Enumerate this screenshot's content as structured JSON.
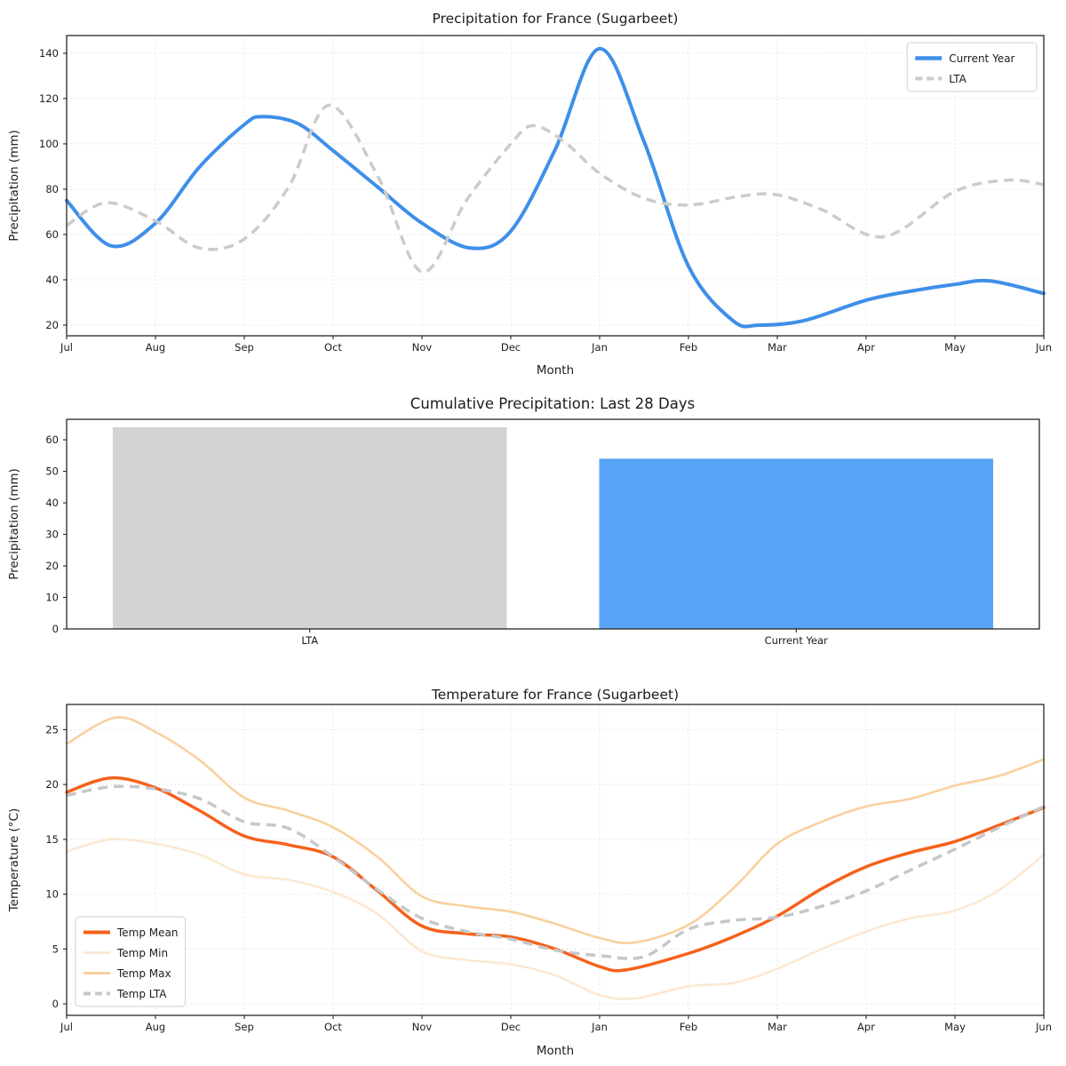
{
  "chart_data": [
    {
      "id": "precip_line",
      "type": "line",
      "title": "Precipitation for France (Sugarbeet)",
      "xlabel": "Month",
      "ylabel": "Precipitation (mm)",
      "x_ticks": [
        "Jul",
        "Aug",
        "Sep",
        "Oct",
        "Nov",
        "Dec",
        "Jan",
        "Feb",
        "Mar",
        "Apr",
        "May",
        "Jun"
      ],
      "xlim": [
        0,
        11
      ],
      "ylim": [
        15.3,
        147.8
      ],
      "yticks": [
        20,
        40,
        60,
        80,
        100,
        120,
        140
      ],
      "grid": true,
      "legend": {
        "anchor": "top-right"
      },
      "series": [
        {
          "name": "Current Year",
          "color": "#3e8fe9",
          "style": "solid",
          "width": 4,
          "points": [
            [
              0,
              75
            ],
            [
              0.5,
              55
            ],
            [
              1,
              65
            ],
            [
              1.5,
              90
            ],
            [
              2,
              108.5
            ],
            [
              2.2,
              112
            ],
            [
              2.6,
              109
            ],
            [
              3,
              97
            ],
            [
              3.5,
              81
            ],
            [
              4,
              65
            ],
            [
              4.55,
              54
            ],
            [
              5,
              61.5
            ],
            [
              5.5,
              97.5
            ],
            [
              6,
              142
            ],
            [
              6.5,
              101
            ],
            [
              7,
              46
            ],
            [
              7.5,
              22
            ],
            [
              7.8,
              20
            ],
            [
              8.3,
              22
            ],
            [
              9,
              31
            ],
            [
              9.5,
              35
            ],
            [
              10,
              38
            ],
            [
              10.4,
              39.5
            ],
            [
              11,
              34
            ]
          ]
        },
        {
          "name": "LTA",
          "color": "#cbcbcb",
          "style": "dashed",
          "width": 3.5,
          "points": [
            [
              0,
              64
            ],
            [
              0.45,
              74
            ],
            [
              1,
              66
            ],
            [
              1.5,
              54
            ],
            [
              2,
              58
            ],
            [
              2.5,
              81
            ],
            [
              2.95,
              117
            ],
            [
              3.5,
              86
            ],
            [
              4,
              43.5
            ],
            [
              4.5,
              75
            ],
            [
              5,
              100
            ],
            [
              5.25,
              108
            ],
            [
              5.6,
              101
            ],
            [
              6,
              87
            ],
            [
              6.5,
              76
            ],
            [
              7,
              73
            ],
            [
              7.6,
              77
            ],
            [
              8,
              77.5
            ],
            [
              8.5,
              71
            ],
            [
              9.2,
              59
            ],
            [
              10,
              79
            ],
            [
              10.6,
              84
            ],
            [
              11,
              82
            ]
          ]
        }
      ]
    },
    {
      "id": "precip_bar",
      "type": "bar",
      "title": "Cumulative Precipitation: Last 28 Days",
      "ylabel": "Precipitation (mm)",
      "categories": [
        "LTA",
        "Current Year"
      ],
      "values": [
        64,
        54
      ],
      "bar_colors": [
        "#d3d3d3",
        "#57a3f5"
      ],
      "ylim": [
        0,
        66.5
      ],
      "yticks": [
        0,
        10,
        20,
        30,
        40,
        50,
        60
      ],
      "grid": false
    },
    {
      "id": "temp_line",
      "type": "line",
      "title": "Temperature for France (Sugarbeet)",
      "xlabel": "Month",
      "ylabel": "Temperature (°C)",
      "x_ticks": [
        "Jul",
        "Aug",
        "Sep",
        "Oct",
        "Nov",
        "Dec",
        "Jan",
        "Feb",
        "Mar",
        "Apr",
        "May",
        "Jun"
      ],
      "xlim": [
        0,
        11
      ],
      "ylim": [
        -1.05,
        27.3
      ],
      "yticks": [
        0,
        5,
        10,
        15,
        20,
        25
      ],
      "grid": true,
      "legend": {
        "anchor": "bottom-left"
      },
      "series": [
        {
          "name": "Temp Mean",
          "color": "#f5611b",
          "style": "solid",
          "width": 3.5,
          "points": [
            [
              0,
              19.3
            ],
            [
              0.5,
              20.6
            ],
            [
              1,
              19.7
            ],
            [
              1.5,
              17.6
            ],
            [
              2,
              15.3
            ],
            [
              2.5,
              14.5
            ],
            [
              3,
              13.4
            ],
            [
              3.5,
              10.3
            ],
            [
              4,
              7.1
            ],
            [
              4.5,
              6.4
            ],
            [
              5,
              6.1
            ],
            [
              5.5,
              5.0
            ],
            [
              6,
              3.4
            ],
            [
              6.3,
              3.1
            ],
            [
              7,
              4.6
            ],
            [
              7.5,
              6.1
            ],
            [
              8,
              8.0
            ],
            [
              8.5,
              10.5
            ],
            [
              9,
              12.5
            ],
            [
              9.5,
              13.8
            ],
            [
              10,
              14.8
            ],
            [
              10.5,
              16.3
            ],
            [
              11,
              17.9
            ]
          ]
        },
        {
          "name": "Temp Min",
          "color": "#fce8d3",
          "style": "solid",
          "width": 2.6,
          "points": [
            [
              0,
              13.9
            ],
            [
              0.5,
              15.0
            ],
            [
              1,
              14.6
            ],
            [
              1.5,
              13.6
            ],
            [
              2,
              11.8
            ],
            [
              2.5,
              11.3
            ],
            [
              3,
              10.2
            ],
            [
              3.5,
              8.2
            ],
            [
              4,
              4.8
            ],
            [
              4.5,
              4.0
            ],
            [
              5,
              3.6
            ],
            [
              5.5,
              2.6
            ],
            [
              6,
              0.8
            ],
            [
              6.4,
              0.5
            ],
            [
              7,
              1.6
            ],
            [
              7.5,
              1.9
            ],
            [
              8,
              3.2
            ],
            [
              8.5,
              5.0
            ],
            [
              9,
              6.6
            ],
            [
              9.5,
              7.8
            ],
            [
              10,
              8.5
            ],
            [
              10.5,
              10.4
            ],
            [
              11,
              13.6
            ]
          ]
        },
        {
          "name": "Temp Max",
          "color": "#f9d09e",
          "style": "solid",
          "width": 2.6,
          "points": [
            [
              0,
              23.7
            ],
            [
              0.55,
              26.1
            ],
            [
              1,
              24.8
            ],
            [
              1.5,
              22.2
            ],
            [
              2,
              18.8
            ],
            [
              2.5,
              17.6
            ],
            [
              3,
              16.1
            ],
            [
              3.5,
              13.4
            ],
            [
              4,
              9.8
            ],
            [
              4.5,
              8.9
            ],
            [
              5,
              8.4
            ],
            [
              5.5,
              7.3
            ],
            [
              6,
              6.0
            ],
            [
              6.4,
              5.6
            ],
            [
              7,
              7.2
            ],
            [
              7.5,
              10.5
            ],
            [
              8,
              14.6
            ],
            [
              8.5,
              16.6
            ],
            [
              9,
              18.0
            ],
            [
              9.5,
              18.7
            ],
            [
              10,
              19.9
            ],
            [
              10.5,
              20.8
            ],
            [
              11,
              22.3
            ]
          ]
        },
        {
          "name": "Temp LTA",
          "color": "#c5c7c9",
          "style": "dashed",
          "width": 3.5,
          "points": [
            [
              0,
              19.0
            ],
            [
              0.5,
              19.8
            ],
            [
              1,
              19.6
            ],
            [
              1.5,
              18.7
            ],
            [
              2,
              16.6
            ],
            [
              2.5,
              16.0
            ],
            [
              3,
              13.4
            ],
            [
              3.5,
              10.4
            ],
            [
              4,
              7.8
            ],
            [
              4.5,
              6.6
            ],
            [
              5,
              5.9
            ],
            [
              5.5,
              4.9
            ],
            [
              6,
              4.4
            ],
            [
              6.5,
              4.3
            ],
            [
              7,
              6.8
            ],
            [
              7.5,
              7.6
            ],
            [
              8,
              7.9
            ],
            [
              8.5,
              8.9
            ],
            [
              9,
              10.3
            ],
            [
              9.5,
              12.2
            ],
            [
              10,
              14.1
            ],
            [
              10.5,
              16.1
            ],
            [
              11,
              18.0
            ]
          ]
        }
      ]
    }
  ]
}
